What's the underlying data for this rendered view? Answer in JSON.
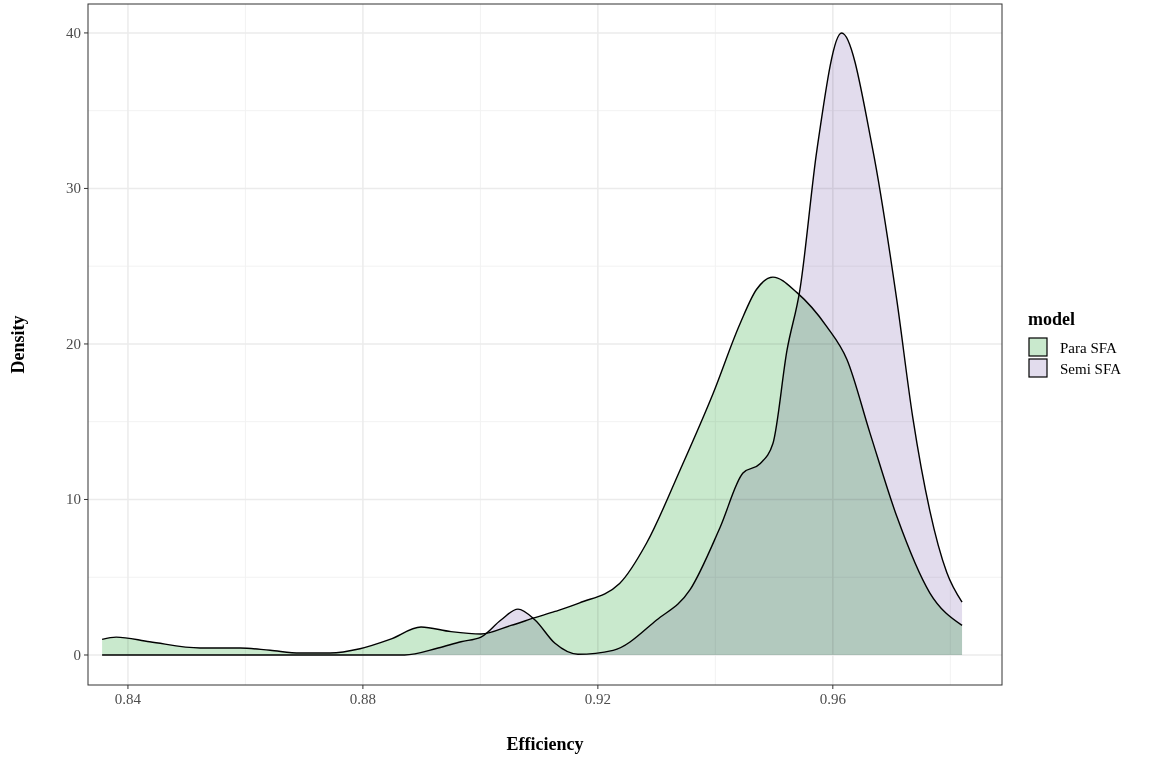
{
  "chart_data": {
    "type": "area",
    "xlabel": "Efficiency",
    "ylabel": "Density",
    "legend_title": "model",
    "legend": "right",
    "grid": true,
    "xlim": [
      0.8332,
      0.9888
    ],
    "ylim": [
      -1.93,
      41.86
    ],
    "xticks": [
      0.84,
      0.88,
      0.92,
      0.96
    ],
    "yticks": [
      0,
      10,
      20,
      30,
      40
    ],
    "series": [
      {
        "name": "Para SFA",
        "color": "#c9e9cd",
        "x": [
          0.8356,
          0.838,
          0.8437,
          0.8523,
          0.8591,
          0.8642,
          0.8693,
          0.8744,
          0.8795,
          0.8846,
          0.8899,
          0.895,
          0.9001,
          0.9052,
          0.9093,
          0.9127,
          0.9169,
          0.9237,
          0.9283,
          0.934,
          0.9396,
          0.9442,
          0.947,
          0.9498,
          0.9539,
          0.959,
          0.9624,
          0.9663,
          0.9709,
          0.9765,
          0.982
        ],
        "values": [
          1.0,
          1.15,
          0.85,
          0.45,
          0.45,
          0.3,
          0.13,
          0.13,
          0.4,
          1.0,
          1.8,
          1.5,
          1.35,
          1.9,
          2.4,
          2.8,
          3.35,
          4.6,
          7.2,
          11.9,
          16.8,
          21.3,
          23.5,
          24.3,
          23.3,
          21.1,
          19.0,
          14.3,
          8.9,
          4.0,
          1.9
        ]
      },
      {
        "name": "Semi SFA",
        "color": "#e2dced",
        "x": [
          0.8356,
          0.8871,
          0.8928,
          0.8967,
          0.9001,
          0.9035,
          0.9064,
          0.9093,
          0.9127,
          0.9166,
          0.9226,
          0.93,
          0.9357,
          0.9408,
          0.9447,
          0.9476,
          0.9498,
          0.9522,
          0.9544,
          0.9573,
          0.9615,
          0.9668,
          0.9709,
          0.9736,
          0.9765,
          0.9794,
          0.982
        ],
        "values": [
          0,
          0,
          0.45,
          0.85,
          1.15,
          2.25,
          2.95,
          2.25,
          0.75,
          0.05,
          0.3,
          2.25,
          4.2,
          8.2,
          11.7,
          12.3,
          13.6,
          19.6,
          23.5,
          32.5,
          40,
          32.5,
          22.8,
          15.3,
          9.3,
          5.3,
          3.4
        ]
      }
    ]
  }
}
